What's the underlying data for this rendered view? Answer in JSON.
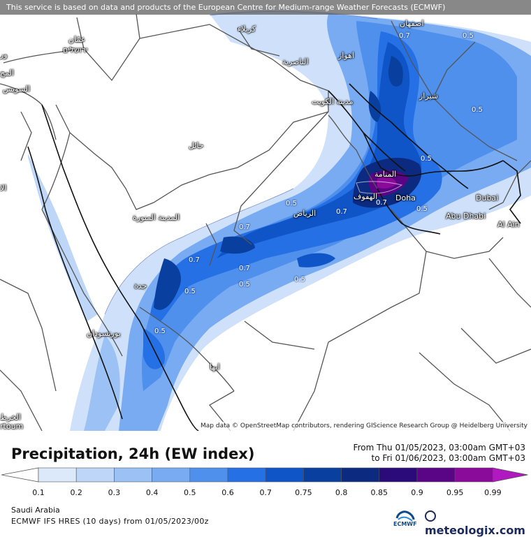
{
  "header": {
    "notice": "This service is based on data and products of the European Centre for Medium-range Weather Forecasts (ECMWF)"
  },
  "map": {
    "attribution": "Map data © OpenStreetMap contributors, rendering GIScience Research Group @ Heidelberg University",
    "cities": [
      {
        "name": "اصفهان"
      },
      {
        "name": "كربلاء"
      },
      {
        "name": "اهواز"
      },
      {
        "name": "الناصرية"
      },
      {
        "name": "مدينة الكويت"
      },
      {
        "name": "شيراز"
      },
      {
        "name": "عمّان"
      },
      {
        "name": "ירושלים"
      },
      {
        "name": "السويس"
      },
      {
        "name": "حائل"
      },
      {
        "name": "المدينة المنورة"
      },
      {
        "name": "المنامة"
      },
      {
        "name": "الهفوف"
      },
      {
        "name": "Doha"
      },
      {
        "name": "Dubai"
      },
      {
        "name": "Abu Dhabi"
      },
      {
        "name": "Al Ain"
      },
      {
        "name": "الرياض"
      },
      {
        "name": "جدة"
      },
      {
        "name": "بورتسودان"
      },
      {
        "name": "ابها"
      }
    ],
    "partial_labels": [
      "ور",
      "المح",
      "الا",
      "الخرط",
      "rtoum"
    ],
    "contour_labels": [
      "0.7",
      "0.5",
      "0.5",
      "0.7",
      "0.5",
      "0.7",
      "0.5",
      "0.7",
      "0.7",
      "0.5",
      "0.5",
      "0.7",
      "0.5",
      "0.5",
      "0.5"
    ]
  },
  "title": "Precipitation, 24h (EW index)",
  "period": {
    "from": "From Thu 01/05/2023, 03:00am GMT+03",
    "to": "to Fri 01/06/2023, 03:00am GMT+03"
  },
  "legend": {
    "ticks": [
      "0.1",
      "0.2",
      "0.3",
      "0.4",
      "0.5",
      "0.6",
      "0.7",
      "0.75",
      "0.8",
      "0.85",
      "0.9",
      "0.95",
      "0.99"
    ],
    "colors": [
      "#ffffff",
      "#dbe9fb",
      "#bed7f8",
      "#9cc2f5",
      "#78abf1",
      "#4f90ec",
      "#2670e5",
      "#0f55c7",
      "#0940a0",
      "#0c2a80",
      "#2b0a7a",
      "#5a0585",
      "#8a0a9a",
      "#b018c0"
    ]
  },
  "footer": {
    "region": "Saudi Arabia",
    "model": "ECMWF IFS HRES (10 days) from 01/05/2023/00z",
    "ecmwf_logo": "ECMWF",
    "brand": "meteologix.com"
  }
}
